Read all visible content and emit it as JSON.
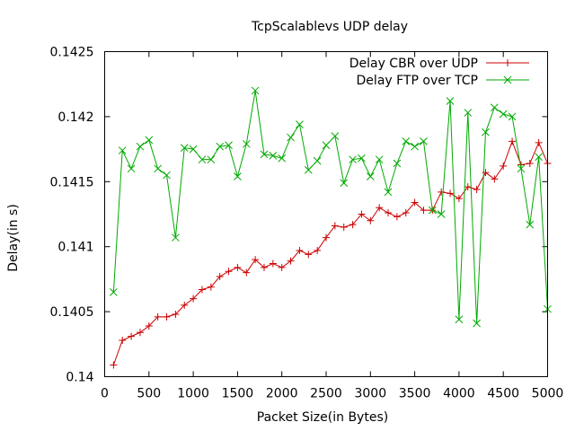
{
  "chart_data": {
    "type": "line",
    "title": "TcpScalablevs UDP delay",
    "xlabel": "Packet Size(in Bytes)",
    "ylabel": "Delay(in s)",
    "xlim": [
      0,
      5000
    ],
    "ylim": [
      0.14,
      0.1425
    ],
    "x_ticks": [
      0,
      500,
      1000,
      1500,
      2000,
      2500,
      3000,
      3500,
      4000,
      4500,
      5000
    ],
    "x_tick_labels": [
      "0",
      "500",
      "1000",
      "1500",
      "2000",
      "2500",
      "3000",
      "3500",
      "4000",
      "4500",
      "5000"
    ],
    "y_ticks": [
      0.14,
      0.1405,
      0.141,
      0.1415,
      0.142,
      0.1425
    ],
    "y_tick_labels": [
      "0.14",
      "0.1405",
      "0.141",
      "0.1415",
      "0.142",
      "0.1425"
    ],
    "grid": false,
    "legend_position": "top-right",
    "x": [
      100,
      200,
      300,
      400,
      500,
      600,
      700,
      800,
      900,
      1000,
      1100,
      1200,
      1300,
      1400,
      1500,
      1600,
      1700,
      1800,
      1900,
      2000,
      2100,
      2200,
      2300,
      2400,
      2500,
      2600,
      2700,
      2800,
      2900,
      3000,
      3100,
      3200,
      3300,
      3400,
      3500,
      3600,
      3700,
      3800,
      3900,
      4000,
      4100,
      4200,
      4300,
      4400,
      4500,
      4600,
      4700,
      4800,
      4900,
      5000
    ],
    "series": [
      {
        "name": "Delay CBR over UDP",
        "color": "#cc0000",
        "marker": "plus",
        "values": [
          0.14009,
          0.14028,
          0.14031,
          0.14034,
          0.14039,
          0.14046,
          0.14046,
          0.14048,
          0.14055,
          0.1406,
          0.14067,
          0.14069,
          0.14077,
          0.14081,
          0.14084,
          0.1408,
          0.1409,
          0.14084,
          0.14087,
          0.14084,
          0.14089,
          0.14097,
          0.14094,
          0.14097,
          0.14107,
          0.14116,
          0.14115,
          0.14117,
          0.14125,
          0.1412,
          0.1413,
          0.14126,
          0.14123,
          0.14126,
          0.14134,
          0.14128,
          0.14128,
          0.14142,
          0.14141,
          0.14137,
          0.14146,
          0.14144,
          0.14157,
          0.14152,
          0.14162,
          0.14181,
          0.14163,
          0.14164,
          0.1418,
          0.14164
        ]
      },
      {
        "name": "Delay FTP over TCP",
        "color": "#00aa00",
        "marker": "cross",
        "values": [
          0.14065,
          0.14174,
          0.1416,
          0.14177,
          0.14182,
          0.1416,
          0.14155,
          0.14107,
          0.14176,
          0.14175,
          0.14167,
          0.14167,
          0.14177,
          0.14178,
          0.14154,
          0.14179,
          0.1422,
          0.14171,
          0.1417,
          0.14168,
          0.14184,
          0.14194,
          0.14159,
          0.14166,
          0.14178,
          0.14185,
          0.14149,
          0.14167,
          0.14168,
          0.14154,
          0.14167,
          0.14142,
          0.14164,
          0.14181,
          0.14177,
          0.14181,
          0.14128,
          0.14125,
          0.14212,
          0.14044,
          0.14203,
          0.14041,
          0.14188,
          0.14207,
          0.14202,
          0.142,
          0.1416,
          0.14117,
          0.14169,
          0.14052
        ]
      }
    ]
  }
}
